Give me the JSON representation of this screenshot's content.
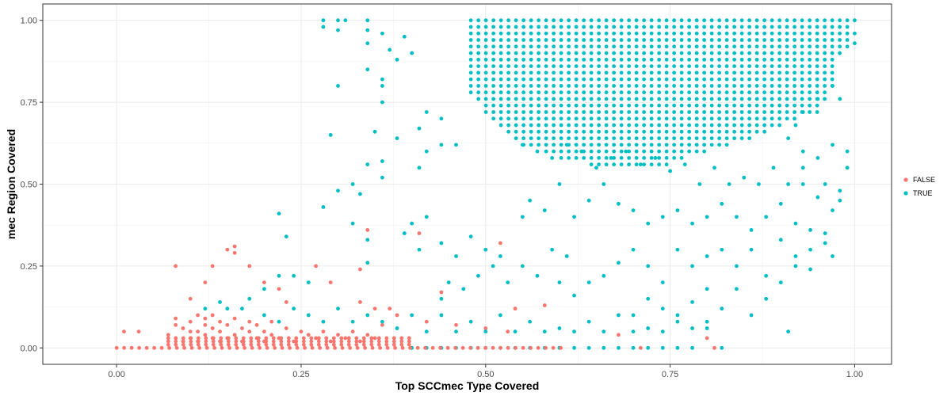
{
  "chart_data": {
    "type": "scatter",
    "xlabel": "Top SCCmec Type Covered",
    "ylabel": "mec Region Covered",
    "xlim": [
      -0.1,
      1.05
    ],
    "ylim": [
      -0.05,
      1.05
    ],
    "x_ticks": [
      0,
      0.25,
      0.5,
      0.75,
      1
    ],
    "x_tick_labels": [
      "0.00",
      "0.25",
      "0.50",
      "0.75",
      "1.00"
    ],
    "y_ticks": [
      0,
      0.25,
      0.5,
      0.75,
      1
    ],
    "y_tick_labels": [
      "0.00",
      "0.25",
      "0.50",
      "0.75",
      "1.00"
    ],
    "grid": true,
    "legend_position": "right",
    "series": [
      {
        "name": "FALSE",
        "color": "#F8766D",
        "points": [
          [
            0.01,
            0.05
          ],
          [
            0.03,
            0.05
          ],
          [
            0.07,
            0.04
          ],
          [
            0.08,
            0.07
          ],
          [
            0.08,
            0.09
          ],
          [
            0.09,
            0.02
          ],
          [
            0.09,
            0.06
          ],
          [
            0.1,
            0.03
          ],
          [
            0.1,
            0.05
          ],
          [
            0.1,
            0.08
          ],
          [
            0.11,
            0.02
          ],
          [
            0.11,
            0.05
          ],
          [
            0.11,
            0.1
          ],
          [
            0.12,
            0.04
          ],
          [
            0.12,
            0.07
          ],
          [
            0.12,
            0.09
          ],
          [
            0.13,
            0.03
          ],
          [
            0.13,
            0.06
          ],
          [
            0.13,
            0.1
          ],
          [
            0.14,
            0.02
          ],
          [
            0.14,
            0.05
          ],
          [
            0.14,
            0.08
          ],
          [
            0.15,
            0.03
          ],
          [
            0.15,
            0.07
          ],
          [
            0.16,
            0.04
          ],
          [
            0.16,
            0.09
          ],
          [
            0.17,
            0.02
          ],
          [
            0.17,
            0.06
          ],
          [
            0.18,
            0.05
          ],
          [
            0.18,
            0.08
          ],
          [
            0.19,
            0.03
          ],
          [
            0.19,
            0.07
          ],
          [
            0.2,
            0.02
          ],
          [
            0.2,
            0.05
          ],
          [
            0.21,
            0.04
          ],
          [
            0.21,
            0.08
          ],
          [
            0.22,
            0.03
          ],
          [
            0.23,
            0.06
          ],
          [
            0.24,
            0.02
          ],
          [
            0.25,
            0.05
          ],
          [
            0.26,
            0.04
          ],
          [
            0.27,
            0.03
          ],
          [
            0.28,
            0.05
          ],
          [
            0.29,
            0.02
          ],
          [
            0.3,
            0.04
          ],
          [
            0.31,
            0.03
          ],
          [
            0.32,
            0.05
          ],
          [
            0.33,
            0.02
          ],
          [
            0.34,
            0.04
          ],
          [
            0.35,
            0.03
          ],
          [
            0.08,
            0.25
          ],
          [
            0.1,
            0.15
          ],
          [
            0.12,
            0.2
          ],
          [
            0.13,
            0.25
          ],
          [
            0.15,
            0.3
          ],
          [
            0.16,
            0.31
          ],
          [
            0.16,
            0.29
          ],
          [
            0.18,
            0.25
          ],
          [
            0.2,
            0.2
          ],
          [
            0.22,
            0.18
          ],
          [
            0.23,
            0.14
          ],
          [
            0.27,
            0.25
          ],
          [
            0.29,
            0.2
          ],
          [
            0.33,
            0.14
          ],
          [
            0.35,
            0.12
          ],
          [
            0.37,
            0.12
          ],
          [
            0.41,
            0.35
          ],
          [
            0.44,
            0.17
          ],
          [
            0.52,
            0.32
          ],
          [
            0.58,
            0.13
          ],
          [
            0.54,
            0.12
          ],
          [
            0.68,
            0.04
          ],
          [
            0.71,
            0.0
          ],
          [
            0.8,
            0.03
          ],
          [
            0.81,
            0.0
          ],
          [
            0.33,
            0.24
          ],
          [
            0.34,
            0.36
          ],
          [
            0.36,
            0.07
          ],
          [
            0.38,
            0.1
          ],
          [
            0.42,
            0.08
          ],
          [
            0.46,
            0.07
          ],
          [
            0.5,
            0.06
          ],
          [
            0.53,
            0.05
          ]
        ]
      },
      {
        "name": "TRUE",
        "color": "#00BFC4",
        "points": [
          [
            0.28,
            1.0
          ],
          [
            0.28,
            0.98
          ],
          [
            0.3,
            1.0
          ],
          [
            0.31,
            1.0
          ],
          [
            0.3,
            0.97
          ],
          [
            0.34,
            1.0
          ],
          [
            0.34,
            0.97
          ],
          [
            0.34,
            0.93
          ],
          [
            0.36,
            0.96
          ],
          [
            0.37,
            0.91
          ],
          [
            0.38,
            0.88
          ],
          [
            0.39,
            0.95
          ],
          [
            0.4,
            0.9
          ],
          [
            0.34,
            0.85
          ],
          [
            0.36,
            0.82
          ],
          [
            0.36,
            0.8
          ],
          [
            0.35,
            0.66
          ],
          [
            0.3,
            0.8
          ],
          [
            0.29,
            0.65
          ],
          [
            0.36,
            0.75
          ],
          [
            0.38,
            0.64
          ],
          [
            0.41,
            0.55
          ],
          [
            0.41,
            0.67
          ],
          [
            0.42,
            0.72
          ],
          [
            0.44,
            0.7
          ],
          [
            0.44,
            0.62
          ],
          [
            0.46,
            0.62
          ],
          [
            0.42,
            0.6
          ],
          [
            0.34,
            0.56
          ],
          [
            0.36,
            0.57
          ],
          [
            0.36,
            0.52
          ],
          [
            0.33,
            0.47
          ],
          [
            0.32,
            0.5
          ],
          [
            0.3,
            0.48
          ],
          [
            0.28,
            0.43
          ],
          [
            0.22,
            0.41
          ],
          [
            0.23,
            0.34
          ],
          [
            0.32,
            0.38
          ],
          [
            0.34,
            0.33
          ],
          [
            0.34,
            0.26
          ],
          [
            0.39,
            0.35
          ],
          [
            0.4,
            0.38
          ],
          [
            0.42,
            0.4
          ],
          [
            0.41,
            0.3
          ],
          [
            0.44,
            0.32
          ],
          [
            0.46,
            0.28
          ],
          [
            0.48,
            0.34
          ],
          [
            0.5,
            0.3
          ],
          [
            0.52,
            0.28
          ],
          [
            0.26,
            0.2
          ],
          [
            0.24,
            0.22
          ],
          [
            0.22,
            0.22
          ],
          [
            0.2,
            0.18
          ],
          [
            0.18,
            0.15
          ],
          [
            0.17,
            0.12
          ],
          [
            0.15,
            0.12
          ],
          [
            0.14,
            0.14
          ],
          [
            0.12,
            0.12
          ],
          [
            0.2,
            0.1
          ],
          [
            0.22,
            0.08
          ],
          [
            0.24,
            0.12
          ],
          [
            0.26,
            0.1
          ],
          [
            0.28,
            0.08
          ],
          [
            0.3,
            0.12
          ],
          [
            0.32,
            0.08
          ],
          [
            0.34,
            0.1
          ],
          [
            0.36,
            0.08
          ],
          [
            0.38,
            0.06
          ],
          [
            0.4,
            0.1
          ],
          [
            0.42,
            0.05
          ],
          [
            0.44,
            0.1
          ],
          [
            0.46,
            0.05
          ],
          [
            0.48,
            0.08
          ],
          [
            0.5,
            0.05
          ],
          [
            0.52,
            0.1
          ],
          [
            0.54,
            0.05
          ],
          [
            0.56,
            0.08
          ],
          [
            0.58,
            0.05
          ],
          [
            0.6,
            0.06
          ],
          [
            0.62,
            0.05
          ],
          [
            0.64,
            0.08
          ],
          [
            0.66,
            0.05
          ],
          [
            0.68,
            0.1
          ],
          [
            0.7,
            0.05
          ],
          [
            0.72,
            0.06
          ],
          [
            0.74,
            0.05
          ],
          [
            0.76,
            0.08
          ],
          [
            0.78,
            0.06
          ],
          [
            0.8,
            0.08
          ],
          [
            0.82,
            0.12
          ],
          [
            0.84,
            0.18
          ],
          [
            0.86,
            0.1
          ],
          [
            0.88,
            0.15
          ],
          [
            0.9,
            0.2
          ],
          [
            0.91,
            0.05
          ],
          [
            0.92,
            0.25
          ],
          [
            0.94,
            0.3
          ],
          [
            0.96,
            0.35
          ],
          [
            0.98,
            0.45
          ],
          [
            0.99,
            0.55
          ],
          [
            0.6,
            0.2
          ],
          [
            0.62,
            0.16
          ],
          [
            0.64,
            0.2
          ],
          [
            0.66,
            0.22
          ],
          [
            0.68,
            0.26
          ],
          [
            0.7,
            0.3
          ],
          [
            0.72,
            0.25
          ],
          [
            0.74,
            0.2
          ],
          [
            0.76,
            0.3
          ],
          [
            0.78,
            0.25
          ],
          [
            0.8,
            0.28
          ],
          [
            0.82,
            0.3
          ],
          [
            0.84,
            0.25
          ],
          [
            0.86,
            0.3
          ],
          [
            0.88,
            0.22
          ],
          [
            0.9,
            0.33
          ],
          [
            0.92,
            0.28
          ],
          [
            0.94,
            0.24
          ],
          [
            0.96,
            0.32
          ],
          [
            0.97,
            0.28
          ],
          [
            0.55,
            0.4
          ],
          [
            0.56,
            0.45
          ],
          [
            0.58,
            0.42
          ],
          [
            0.6,
            0.5
          ],
          [
            0.62,
            0.4
          ],
          [
            0.64,
            0.45
          ],
          [
            0.66,
            0.5
          ],
          [
            0.68,
            0.44
          ],
          [
            0.7,
            0.42
          ],
          [
            0.72,
            0.38
          ],
          [
            0.74,
            0.4
          ],
          [
            0.76,
            0.42
          ],
          [
            0.78,
            0.38
          ],
          [
            0.8,
            0.4
          ],
          [
            0.82,
            0.44
          ],
          [
            0.84,
            0.4
          ],
          [
            0.86,
            0.36
          ],
          [
            0.88,
            0.4
          ],
          [
            0.9,
            0.44
          ],
          [
            0.92,
            0.38
          ],
          [
            0.94,
            0.36
          ],
          [
            0.95,
            0.46
          ],
          [
            0.96,
            0.5
          ],
          [
            0.97,
            0.42
          ],
          [
            0.98,
            0.48
          ],
          [
            0.99,
            0.6
          ],
          [
            0.97,
            0.62
          ],
          [
            0.95,
            0.58
          ],
          [
            0.93,
            0.55
          ],
          [
            0.93,
            0.6
          ],
          [
            0.55,
            0.62
          ],
          [
            0.57,
            0.6
          ],
          [
            0.59,
            0.58
          ],
          [
            0.61,
            0.62
          ],
          [
            0.63,
            0.6
          ],
          [
            0.65,
            0.55
          ],
          [
            0.67,
            0.58
          ],
          [
            0.69,
            0.6
          ],
          [
            0.71,
            0.56
          ],
          [
            0.73,
            0.58
          ],
          [
            0.75,
            0.54
          ],
          [
            0.77,
            0.56
          ],
          [
            0.79,
            0.5
          ],
          [
            0.81,
            0.55
          ],
          [
            0.83,
            0.5
          ],
          [
            0.85,
            0.52
          ],
          [
            0.87,
            0.5
          ],
          [
            0.89,
            0.55
          ],
          [
            0.91,
            0.5
          ],
          [
            0.93,
            0.5
          ],
          [
            0.44,
            0.15
          ],
          [
            0.45,
            0.2
          ],
          [
            0.47,
            0.18
          ],
          [
            0.49,
            0.22
          ],
          [
            0.51,
            0.25
          ],
          [
            0.53,
            0.2
          ],
          [
            0.55,
            0.25
          ],
          [
            0.57,
            0.22
          ],
          [
            0.59,
            0.3
          ],
          [
            0.61,
            0.28
          ],
          [
            0.7,
            0.1
          ],
          [
            0.72,
            0.15
          ],
          [
            0.74,
            0.12
          ],
          [
            0.76,
            0.1
          ],
          [
            0.78,
            0.14
          ],
          [
            0.8,
            0.18
          ],
          [
            0.8,
            0.06
          ],
          [
            0.82,
            0.0
          ],
          [
            0.78,
            0.0
          ],
          [
            0.76,
            0.0
          ],
          [
            0.74,
            0.0
          ],
          [
            0.72,
            0.0
          ],
          [
            0.7,
            0.0
          ],
          [
            0.68,
            0.0
          ],
          [
            0.66,
            0.0
          ],
          [
            0.64,
            0.0
          ],
          [
            0.62,
            0.0
          ],
          [
            0.6,
            0.0
          ],
          [
            0.58,
            0.0
          ],
          [
            0.56,
            0.0
          ],
          [
            0.54,
            0.0
          ],
          [
            0.52,
            0.0
          ],
          [
            0.5,
            0.0
          ],
          [
            0.48,
            0.0
          ],
          [
            0.46,
            0.0
          ],
          [
            0.44,
            0.0
          ],
          [
            0.42,
            0.0
          ],
          [
            0.4,
            0.0
          ],
          [
            0.98,
            0.76
          ],
          [
            1.0,
            0.93
          ],
          [
            1.0,
            0.96
          ],
          [
            1.0,
            1.0
          ],
          [
            0.97,
            0.8
          ],
          [
            0.95,
            0.76
          ],
          [
            0.93,
            0.72
          ],
          [
            0.92,
            0.68
          ],
          [
            0.91,
            0.64
          ]
        ]
      }
    ],
    "dense_region": {
      "series": "TRUE",
      "x_from": 0.48,
      "x_to": 1.0,
      "x_step": 0.0102,
      "y_step": 0.02,
      "y_top": 1.0,
      "y_bottom_profile": [
        [
          0.48,
          0.78
        ],
        [
          0.5,
          0.72
        ],
        [
          0.55,
          0.62
        ],
        [
          0.6,
          0.58
        ],
        [
          0.65,
          0.55
        ],
        [
          0.7,
          0.55
        ],
        [
          0.75,
          0.56
        ],
        [
          0.8,
          0.6
        ],
        [
          0.85,
          0.63
        ],
        [
          0.9,
          0.68
        ],
        [
          0.95,
          0.72
        ],
        [
          0.97,
          0.8
        ],
        [
          0.98,
          0.9
        ],
        [
          1.0,
          0.93
        ]
      ]
    },
    "dense_baseline": {
      "series": "FALSE",
      "y": 0.0,
      "x_from": 0.0,
      "x_to": 0.61,
      "x_step": 0.0102
    },
    "dense_low_rows": {
      "series": "FALSE",
      "x_from": 0.07,
      "x_to": 0.4,
      "x_step": 0.0102,
      "rows": [
        0.01,
        0.02,
        0.03
      ]
    }
  }
}
